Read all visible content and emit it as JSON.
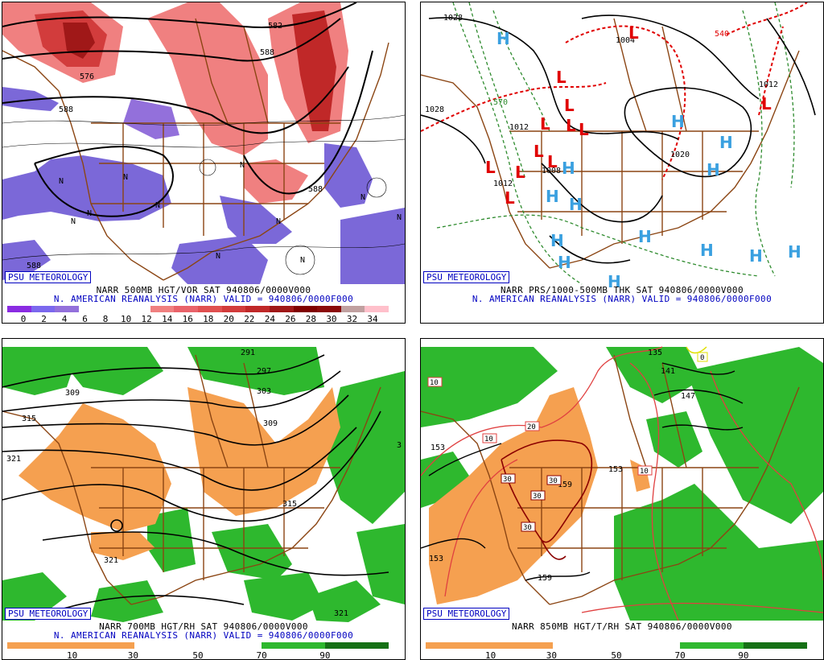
{
  "panels": [
    {
      "id": "500mb",
      "badge": "PSU METEOROLOGY",
      "caption_line1": "NARR 500MB HGT/VOR SAT 940806/0000V000",
      "caption_line2": "N. AMERICAN REANALYSIS (NARR) VALID = 940806/0000F000",
      "contour_labels": [
        "582",
        "588",
        "576",
        "588",
        "588",
        "588"
      ],
      "colorbar_colors": [
        "#8a2be2",
        "#7b68ee",
        "#9370db",
        "#ffffff",
        "#ffffff",
        "#ffffff",
        "#f08080",
        "#e9636a",
        "#e05050",
        "#d23c3c",
        "#c02828",
        "#a01818",
        "#800000",
        "#8b0a0a",
        "#c0a0a0",
        "#ffc0cb"
      ],
      "colorbar_ticks": [
        "0",
        "2",
        "4",
        "6",
        "8",
        "10",
        "12",
        "14",
        "16",
        "18",
        "20",
        "22",
        "24",
        "26",
        "28",
        "30",
        "32",
        "34"
      ]
    },
    {
      "id": "prs-thk",
      "badge": "PSU METEOROLOGY",
      "caption_line1": "NARR PRS/1000-500MB THK SAT 940806/0000V000",
      "caption_line2": "N. AMERICAN REANALYSIS (NARR) VALID = 940806/0000F000",
      "contour_labels": [
        "1028",
        "1028",
        "1004",
        "540",
        "1012",
        "1020",
        "1012",
        "1012",
        "1008",
        "570"
      ],
      "symbols": {
        "high": "H",
        "low": "L"
      }
    },
    {
      "id": "700mb",
      "badge": "PSU METEOROLOGY",
      "caption_line1": "NARR 700MB HGT/RH SAT 940806/0000V000",
      "caption_line2": "N. AMERICAN REANALYSIS (NARR) VALID = 940806/0000F000",
      "contour_labels": [
        "291",
        "297",
        "303",
        "309",
        "309",
        "315",
        "321",
        "315",
        "321",
        "321",
        "3"
      ],
      "colorbar_ticks": [
        "10",
        "30",
        "50",
        "70",
        "90"
      ]
    },
    {
      "id": "850mb",
      "badge": "PSU METEOROLOGY",
      "caption_line1": "NARR 850MB HGT/T/RH SAT 940806/0000V000",
      "contour_labels": [
        "135",
        "141",
        "147",
        "153",
        "153",
        "153",
        "159",
        "159"
      ],
      "temp_labels": [
        "0",
        "10",
        "20",
        "30",
        "30",
        "30",
        "10",
        "10",
        "10",
        "30"
      ],
      "colorbar_ticks": [
        "10",
        "30",
        "50",
        "70",
        "90"
      ]
    }
  ]
}
